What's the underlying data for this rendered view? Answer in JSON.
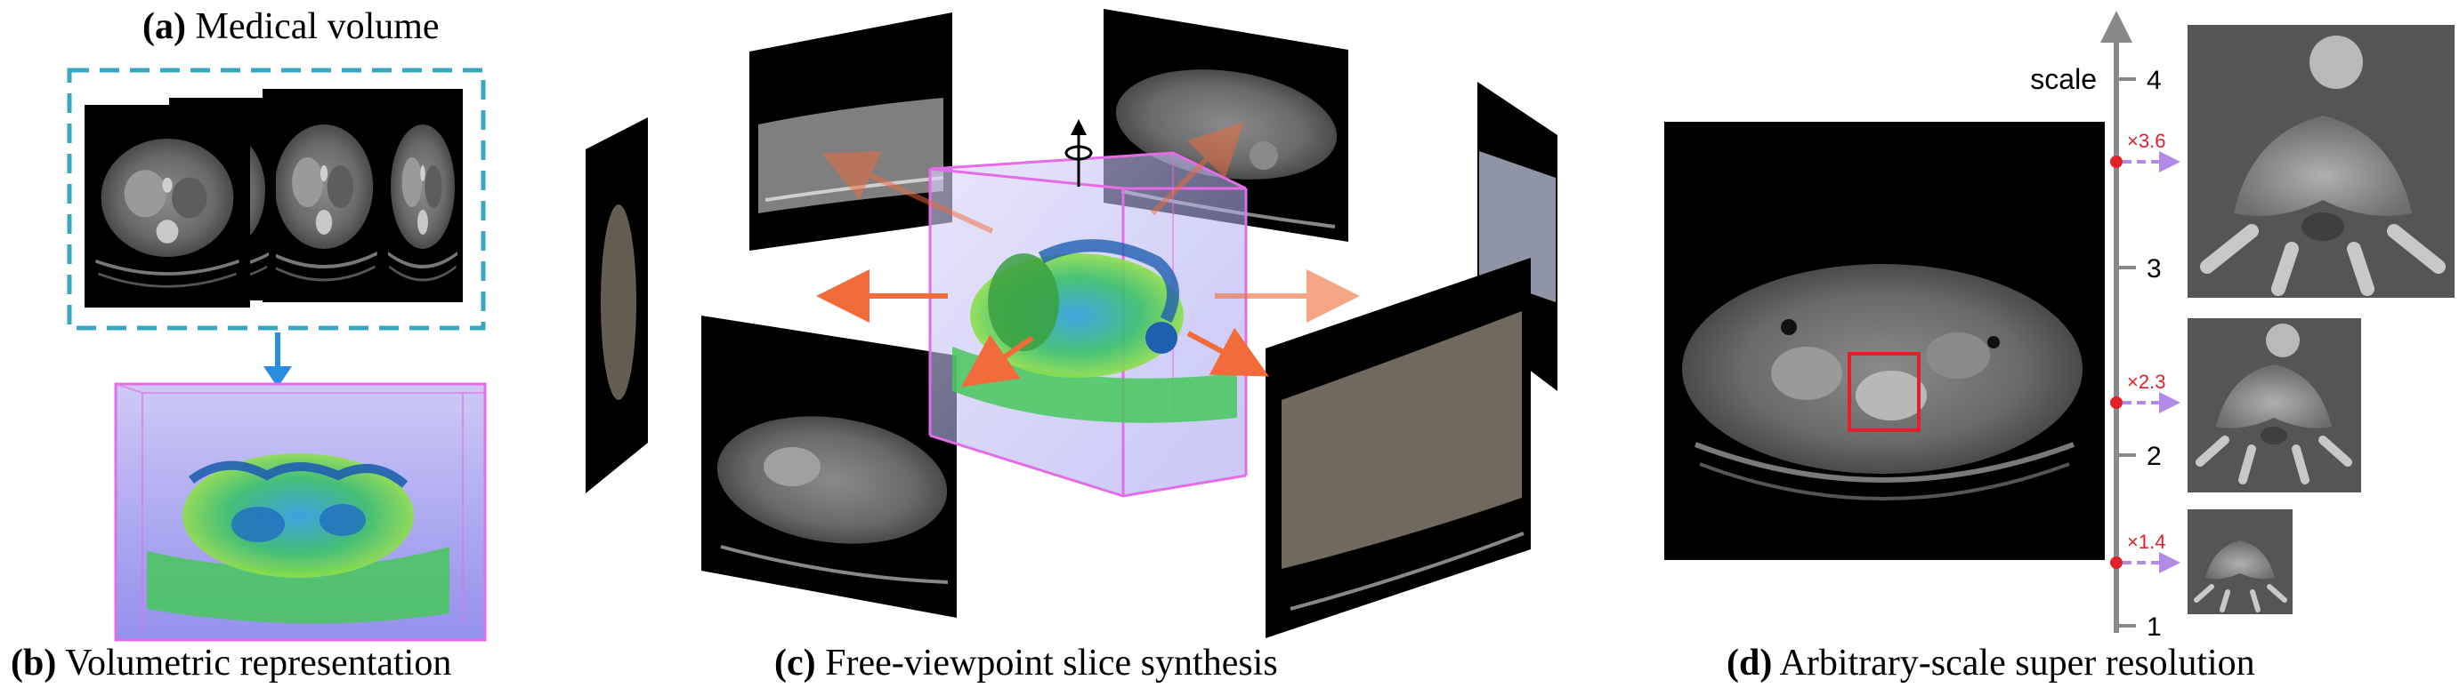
{
  "panels": {
    "a": {
      "tag": "(a)",
      "label": "Medical volume"
    },
    "b": {
      "tag": "(b)",
      "label": "Volumetric representation"
    },
    "c": {
      "tag": "(c)",
      "label": "Free-viewpoint slice synthesis"
    },
    "d": {
      "tag": "(d)",
      "label": "Arbitrary-scale super resolution"
    }
  },
  "scale_axis": {
    "title": "scale",
    "ticks": [
      "4",
      "3",
      "2",
      "1"
    ],
    "markers": [
      {
        "label": "×3.6",
        "value": 3.6
      },
      {
        "label": "×2.3",
        "value": 2.3
      },
      {
        "label": "×1.4",
        "value": 1.4
      }
    ]
  },
  "colors": {
    "dash_box": "#3aa7c0",
    "down_arrow": "#2a8de0",
    "cube_edge": "#e46ce8",
    "slice_arrow": "#f26b3a",
    "marker": "#e0202a",
    "marker_arrow": "#b38be6",
    "axis": "#888888"
  }
}
